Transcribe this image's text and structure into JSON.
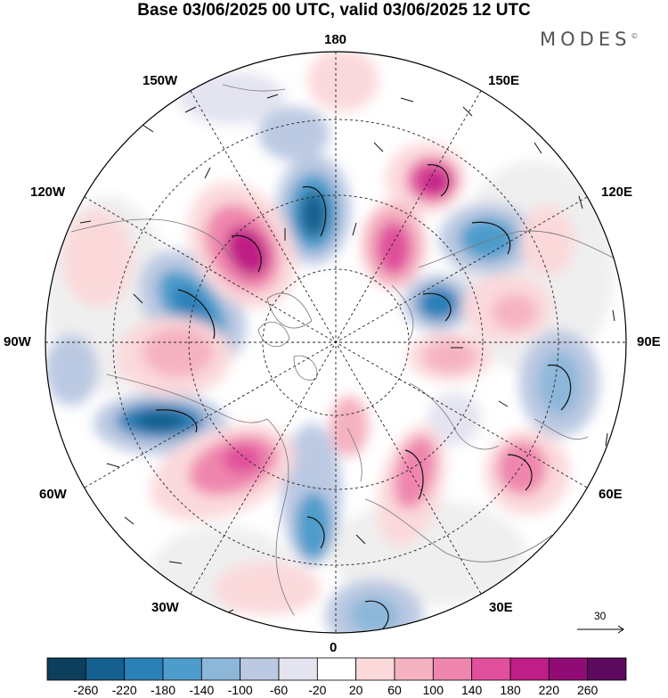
{
  "title": "Base 03/06/2025 00 UTC, valid 03/06/2025 12 UTC",
  "logo": "MODES",
  "logo_mark": "©",
  "longitude_labels": {
    "top": "180",
    "bottom": "0",
    "left": "90W",
    "right": "90E",
    "upper_left_150": "150W",
    "upper_right_150": "150E",
    "upper_left_120": "120W",
    "upper_right_120": "120E",
    "lower_left_60": "60W",
    "lower_right_60": "60E",
    "lower_left_30": "30W",
    "lower_right_30": "30E"
  },
  "vector_reference": "30",
  "colorbar": {
    "ticks": [
      "-260",
      "-220",
      "-180",
      "-140",
      "-100",
      "-60",
      "-20",
      "20",
      "60",
      "100",
      "140",
      "180",
      "220",
      "260"
    ],
    "colors": [
      "#0d3e5c",
      "#14608f",
      "#2b80b8",
      "#4e9ccb",
      "#8db7d9",
      "#bcc9e2",
      "#e4e4f1",
      "#ffffff",
      "#fbd9db",
      "#f5b2c0",
      "#ef86ad",
      "#e0509c",
      "#bf1e86",
      "#900c74",
      "#5c0a5e"
    ]
  },
  "colors": {
    "neutral_fill": "#efefef",
    "coast": "#777777"
  }
}
